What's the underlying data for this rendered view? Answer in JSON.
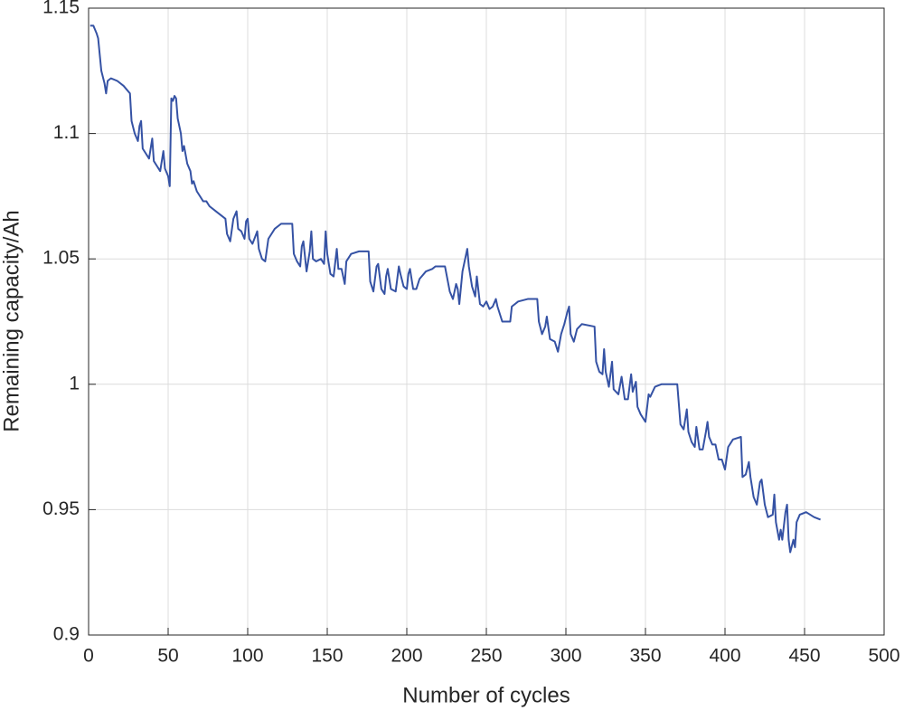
{
  "chart_data": {
    "type": "line",
    "x_label": "Number of cycles",
    "y_label": "Remaining capacity/Ah",
    "x": [
      1,
      3,
      5,
      6,
      8,
      10,
      11,
      12,
      14,
      18,
      22,
      26,
      27,
      29,
      31,
      32,
      33,
      34,
      36,
      38,
      40,
      41,
      43,
      45,
      47,
      48,
      50,
      51,
      52,
      53,
      54,
      55,
      56,
      58,
      59,
      60,
      62,
      64,
      65,
      66,
      68,
      70,
      72,
      74,
      76,
      80,
      82,
      86,
      87,
      89,
      91,
      93,
      94,
      96,
      98,
      99,
      100,
      101,
      103,
      106,
      107,
      109,
      111,
      113,
      117,
      121,
      128,
      129,
      131,
      133,
      134,
      135,
      137,
      139,
      140,
      141,
      143,
      146,
      148,
      149,
      150,
      152,
      154,
      156,
      157,
      159,
      161,
      162,
      165,
      170,
      176,
      177,
      179,
      181,
      182,
      184,
      186,
      187,
      188,
      190,
      193,
      195,
      196,
      198,
      200,
      201,
      202,
      204,
      206,
      208,
      212,
      216,
      218,
      224,
      227,
      229,
      231,
      232,
      233,
      235,
      237,
      238,
      239,
      241,
      243,
      244,
      246,
      248,
      250,
      252,
      254,
      256,
      257,
      260,
      265,
      266,
      270,
      276,
      282,
      283,
      285,
      287,
      288,
      290,
      293,
      295,
      297,
      299,
      301,
      302,
      303,
      305,
      307,
      310,
      318,
      319,
      321,
      323,
      324,
      325,
      327,
      329,
      330,
      333,
      335,
      337,
      339,
      341,
      342,
      344,
      345,
      347,
      350,
      352,
      353,
      356,
      360,
      370,
      372,
      374,
      376,
      377,
      379,
      381,
      382,
      384,
      386,
      388,
      389,
      390,
      392,
      394,
      396,
      398,
      400,
      402,
      405,
      410,
      411,
      413,
      415,
      416,
      418,
      420,
      422,
      423,
      425,
      427,
      430,
      431,
      432,
      434,
      435,
      436,
      438,
      439,
      440,
      441,
      443,
      444,
      445,
      447,
      451,
      456,
      460
    ],
    "series": [
      {
        "name": "Remaining capacity",
        "color": "#3552a4",
        "values": [
          1.143,
          1.143,
          1.14,
          1.138,
          1.125,
          1.12,
          1.116,
          1.121,
          1.122,
          1.121,
          1.119,
          1.116,
          1.105,
          1.1,
          1.097,
          1.103,
          1.105,
          1.094,
          1.092,
          1.09,
          1.098,
          1.089,
          1.087,
          1.085,
          1.093,
          1.086,
          1.083,
          1.079,
          1.114,
          1.113,
          1.115,
          1.114,
          1.106,
          1.1,
          1.093,
          1.095,
          1.088,
          1.085,
          1.08,
          1.081,
          1.077,
          1.075,
          1.073,
          1.073,
          1.071,
          1.069,
          1.068,
          1.066,
          1.06,
          1.057,
          1.066,
          1.069,
          1.062,
          1.061,
          1.058,
          1.065,
          1.066,
          1.058,
          1.056,
          1.061,
          1.054,
          1.05,
          1.049,
          1.058,
          1.062,
          1.064,
          1.064,
          1.052,
          1.049,
          1.047,
          1.055,
          1.057,
          1.045,
          1.053,
          1.061,
          1.05,
          1.049,
          1.05,
          1.048,
          1.061,
          1.052,
          1.044,
          1.043,
          1.054,
          1.046,
          1.046,
          1.04,
          1.049,
          1.052,
          1.053,
          1.053,
          1.041,
          1.037,
          1.047,
          1.048,
          1.038,
          1.036,
          1.043,
          1.046,
          1.038,
          1.037,
          1.047,
          1.044,
          1.039,
          1.038,
          1.044,
          1.046,
          1.038,
          1.038,
          1.042,
          1.045,
          1.046,
          1.047,
          1.047,
          1.037,
          1.034,
          1.04,
          1.038,
          1.032,
          1.045,
          1.051,
          1.054,
          1.047,
          1.039,
          1.035,
          1.043,
          1.032,
          1.031,
          1.033,
          1.03,
          1.031,
          1.034,
          1.031,
          1.025,
          1.025,
          1.031,
          1.033,
          1.034,
          1.034,
          1.025,
          1.02,
          1.023,
          1.027,
          1.018,
          1.017,
          1.013,
          1.02,
          1.024,
          1.029,
          1.031,
          1.02,
          1.017,
          1.022,
          1.024,
          1.023,
          1.009,
          1.005,
          1.004,
          1.014,
          1.005,
          0.999,
          1.009,
          0.998,
          0.996,
          1.003,
          0.994,
          0.994,
          1.004,
          0.997,
          1.001,
          0.991,
          0.988,
          0.985,
          0.996,
          0.995,
          0.999,
          1.0,
          1.0,
          0.984,
          0.982,
          0.99,
          0.981,
          0.977,
          0.975,
          0.983,
          0.974,
          0.974,
          0.981,
          0.985,
          0.979,
          0.976,
          0.976,
          0.97,
          0.97,
          0.966,
          0.975,
          0.978,
          0.979,
          0.963,
          0.964,
          0.969,
          0.963,
          0.955,
          0.952,
          0.961,
          0.962,
          0.952,
          0.947,
          0.948,
          0.956,
          0.945,
          0.938,
          0.942,
          0.938,
          0.949,
          0.952,
          0.938,
          0.933,
          0.938,
          0.935,
          0.945,
          0.948,
          0.949,
          0.947,
          0.946
        ]
      }
    ],
    "xlim": [
      0,
      500
    ],
    "xticks": [
      0,
      50,
      100,
      150,
      200,
      250,
      300,
      350,
      400,
      450,
      500
    ],
    "ylim": [
      0.9,
      1.15
    ],
    "yticks": [
      0.9,
      0.95,
      1,
      1.05,
      1.1,
      1.15
    ],
    "grid": true
  }
}
